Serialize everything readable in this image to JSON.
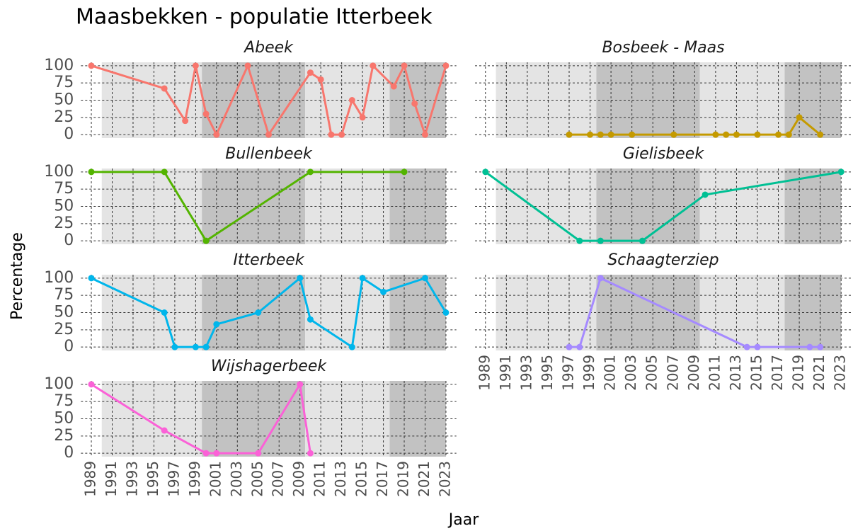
{
  "chart_data": {
    "type": "line",
    "title": "Maasbekken - populatie Itterbeek",
    "x_label": "Jaar",
    "y_label": "Percentage",
    "xlim": [
      1988,
      2024
    ],
    "xticks": [
      1989,
      1991,
      1993,
      1995,
      1997,
      1999,
      2001,
      2003,
      2005,
      2007,
      2009,
      2011,
      2013,
      2015,
      2017,
      2019,
      2021,
      2023
    ],
    "ylim": [
      -5,
      105
    ],
    "yticks": [
      0,
      25,
      50,
      75,
      100
    ],
    "grid": true,
    "periods": [
      {
        "start": 1990,
        "end": 1999.6,
        "color": "#e4e4e4"
      },
      {
        "start": 1999.6,
        "end": 2009.5,
        "color": "#c2c2c2"
      },
      {
        "start": 2009.5,
        "end": 2017.6,
        "color": "#e4e4e4"
      },
      {
        "start": 2017.6,
        "end": 2023,
        "color": "#c2c2c2"
      }
    ],
    "facets": [
      {
        "name": "Abeek",
        "color": "#F8766D",
        "x": [
          1989,
          1996,
          1998,
          1999,
          2000,
          2001,
          2004,
          2006,
          2010,
          2011,
          2012,
          2013,
          2014,
          2015,
          2016,
          2018,
          2019,
          2020,
          2021,
          2023
        ],
        "values": [
          100,
          67,
          20,
          100,
          30,
          0,
          100,
          0,
          90,
          80,
          0,
          0,
          50,
          25,
          100,
          70,
          100,
          45,
          0,
          100
        ]
      },
      {
        "name": "Bosbeek - Maas",
        "color": "#C49A00",
        "x": [
          1997,
          1999,
          2000,
          2001,
          2003,
          2007,
          2011,
          2012,
          2013,
          2015,
          2017,
          2018,
          2019,
          2021
        ],
        "values": [
          0,
          0,
          0,
          0,
          0,
          0,
          0,
          0,
          0,
          0,
          0,
          0,
          25,
          0
        ]
      },
      {
        "name": "Bullenbeek",
        "color": "#53B400",
        "x": [
          1989,
          1996,
          2000,
          2010,
          2019
        ],
        "values": [
          100,
          100,
          0,
          100,
          100
        ]
      },
      {
        "name": "Gielisbeek",
        "color": "#00C094",
        "x": [
          1989,
          1998,
          2000,
          2004,
          2010,
          2023
        ],
        "values": [
          100,
          0,
          0,
          0,
          67,
          100
        ]
      },
      {
        "name": "Itterbeek",
        "color": "#00B6EB",
        "x": [
          1989,
          1996,
          1997,
          1999,
          2000,
          2001,
          2005,
          2009,
          2010,
          2014,
          2015,
          2017,
          2021,
          2023
        ],
        "values": [
          100,
          50,
          0,
          0,
          0,
          33,
          50,
          100,
          40,
          0,
          100,
          80,
          100,
          50
        ]
      },
      {
        "name": "Schaagterziep",
        "color": "#A58AFF",
        "x": [
          1997,
          1998,
          2000,
          2014,
          2015,
          2020,
          2021
        ],
        "values": [
          0,
          0,
          100,
          0,
          0,
          0,
          0
        ]
      },
      {
        "name": "Wijshagerbeek",
        "color": "#FB61D7",
        "x": [
          1989,
          1996,
          2000,
          2001,
          2005,
          2009,
          2010
        ],
        "values": [
          100,
          33,
          0,
          0,
          0,
          100,
          0
        ]
      }
    ]
  }
}
